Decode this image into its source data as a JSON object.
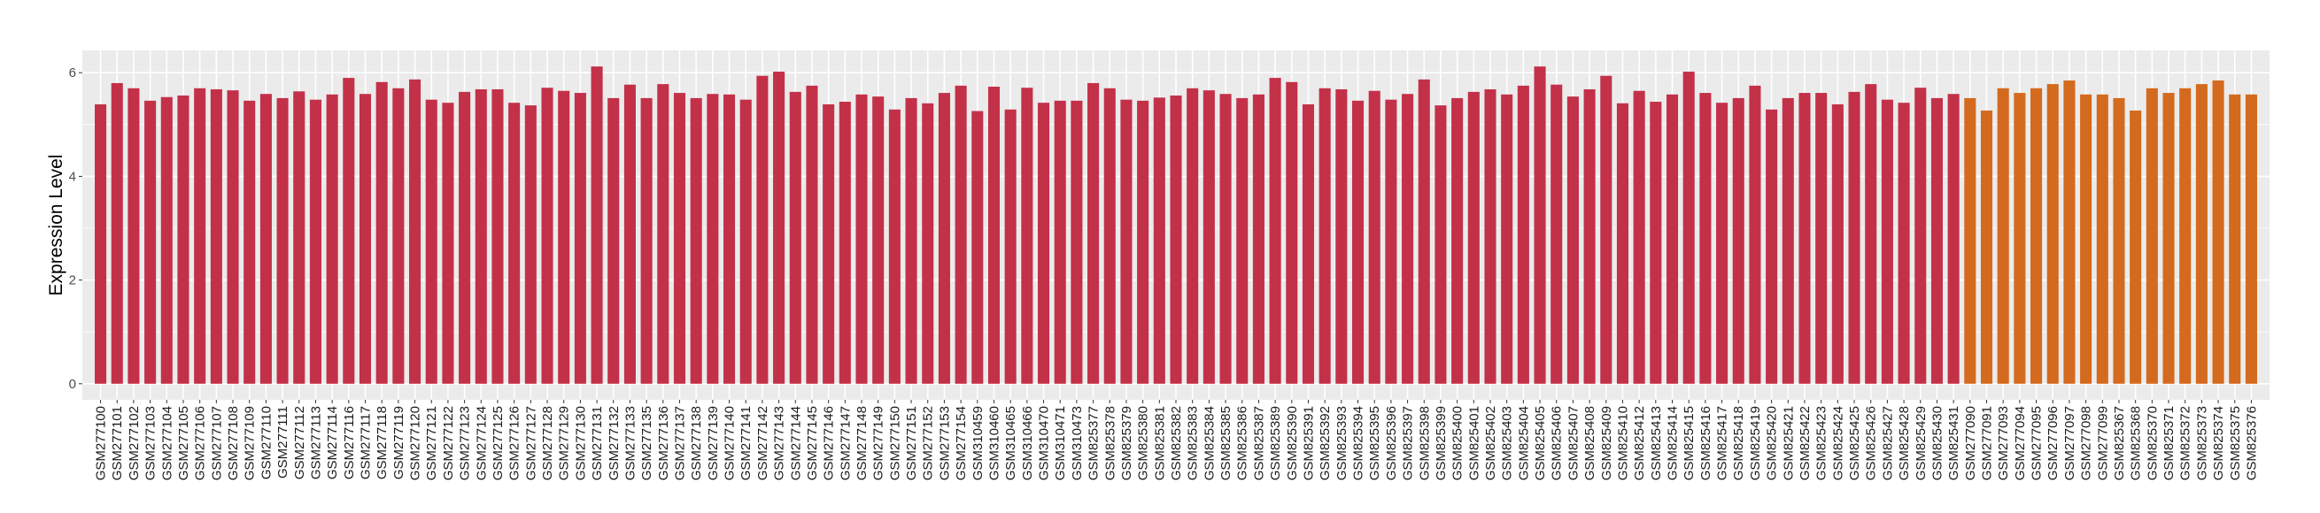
{
  "chart_data": {
    "type": "bar",
    "title": "",
    "xlabel": "",
    "ylabel": "Expression Level",
    "ylim": [
      -0.31,
      6.43
    ],
    "yticks": [
      0,
      2,
      4,
      6
    ],
    "grid": true,
    "legend": "none",
    "colors": {
      "group1": "#C33149",
      "group2": "#D46A1E",
      "panel": "#EBEBEB"
    },
    "categories": [
      "GSM277100",
      "GSM277101",
      "GSM277102",
      "GSM277103",
      "GSM277104",
      "GSM277105",
      "GSM277106",
      "GSM277107",
      "GSM277108",
      "GSM277109",
      "GSM277110",
      "GSM277111",
      "GSM277112",
      "GSM277113",
      "GSM277114",
      "GSM277116",
      "GSM277117",
      "GSM277118",
      "GSM277119",
      "GSM277120",
      "GSM277121",
      "GSM277122",
      "GSM277123",
      "GSM277124",
      "GSM277125",
      "GSM277126",
      "GSM277127",
      "GSM277128",
      "GSM277129",
      "GSM277130",
      "GSM277131",
      "GSM277132",
      "GSM277133",
      "GSM277135",
      "GSM277136",
      "GSM277137",
      "GSM277138",
      "GSM277139",
      "GSM277140",
      "GSM277141",
      "GSM277142",
      "GSM277143",
      "GSM277144",
      "GSM277145",
      "GSM277146",
      "GSM277147",
      "GSM277148",
      "GSM277149",
      "GSM277150",
      "GSM277151",
      "GSM277152",
      "GSM277153",
      "GSM277154",
      "GSM310459",
      "GSM310460",
      "GSM310465",
      "GSM310466",
      "GSM310470",
      "GSM310471",
      "GSM310473",
      "GSM825377",
      "GSM825378",
      "GSM825379",
      "GSM825380",
      "GSM825381",
      "GSM825382",
      "GSM825383",
      "GSM825384",
      "GSM825385",
      "GSM825386",
      "GSM825387",
      "GSM825389",
      "GSM825390",
      "GSM825391",
      "GSM825392",
      "GSM825393",
      "GSM825394",
      "GSM825395",
      "GSM825396",
      "GSM825397",
      "GSM825398",
      "GSM825399",
      "GSM825400",
      "GSM825401",
      "GSM825402",
      "GSM825403",
      "GSM825404",
      "GSM825405",
      "GSM825406",
      "GSM825407",
      "GSM825408",
      "GSM825409",
      "GSM825410",
      "GSM825412",
      "GSM825413",
      "GSM825414",
      "GSM825415",
      "GSM825416",
      "GSM825417",
      "GSM825418",
      "GSM825419",
      "GSM825420",
      "GSM825421",
      "GSM825422",
      "GSM825423",
      "GSM825424",
      "GSM825425",
      "GSM825426",
      "GSM825427",
      "GSM825428",
      "GSM825429",
      "GSM825430",
      "GSM825431",
      "GSM277090",
      "GSM277091",
      "GSM277093",
      "GSM277094",
      "GSM277095",
      "GSM277096",
      "GSM277097",
      "GSM277098",
      "GSM277099",
      "GSM825367",
      "GSM825368",
      "GSM825370",
      "GSM825371",
      "GSM825372",
      "GSM825373",
      "GSM825374",
      "GSM825375",
      "GSM825376"
    ],
    "values": [
      5.39,
      5.8,
      5.7,
      5.46,
      5.53,
      5.56,
      5.7,
      5.68,
      5.66,
      5.46,
      5.59,
      5.51,
      5.64,
      5.48,
      5.58,
      5.9,
      5.59,
      5.82,
      5.7,
      5.87,
      5.48,
      5.42,
      5.63,
      5.68,
      5.68,
      5.42,
      5.37,
      5.71,
      5.65,
      5.61,
      6.12,
      5.51,
      5.77,
      5.51,
      5.78,
      5.61,
      5.51,
      5.59,
      5.58,
      5.48,
      5.94,
      6.02,
      5.63,
      5.75,
      5.39,
      5.44,
      5.58,
      5.54,
      5.29,
      5.51,
      5.41,
      5.61,
      5.75,
      5.26,
      5.73,
      5.29,
      5.71,
      5.42,
      5.46,
      5.46,
      5.8,
      5.7,
      5.48,
      5.46,
      5.52,
      5.56,
      5.7,
      5.66,
      5.59,
      5.51,
      5.58,
      5.9,
      5.82,
      5.39,
      5.7,
      5.68,
      5.46,
      5.65,
      5.48,
      5.59,
      5.87,
      5.37,
      5.51,
      5.63,
      5.68,
      5.58,
      5.75,
      6.12,
      5.77,
      5.54,
      5.68,
      5.94,
      5.41,
      5.65,
      5.44,
      5.58,
      6.02,
      5.61,
      5.42,
      5.51,
      5.75,
      5.29,
      5.51,
      5.61,
      5.61,
      5.39,
      5.63,
      5.78,
      5.48,
      5.42,
      5.71,
      5.51,
      5.59,
      5.51,
      5.27,
      5.7,
      5.61,
      5.7,
      5.78,
      5.85,
      5.58,
      5.58,
      5.51,
      5.27,
      5.7,
      5.61,
      5.7,
      5.78,
      5.85,
      5.58,
      5.58
    ],
    "groups_first_index_of_group2": 113
  }
}
